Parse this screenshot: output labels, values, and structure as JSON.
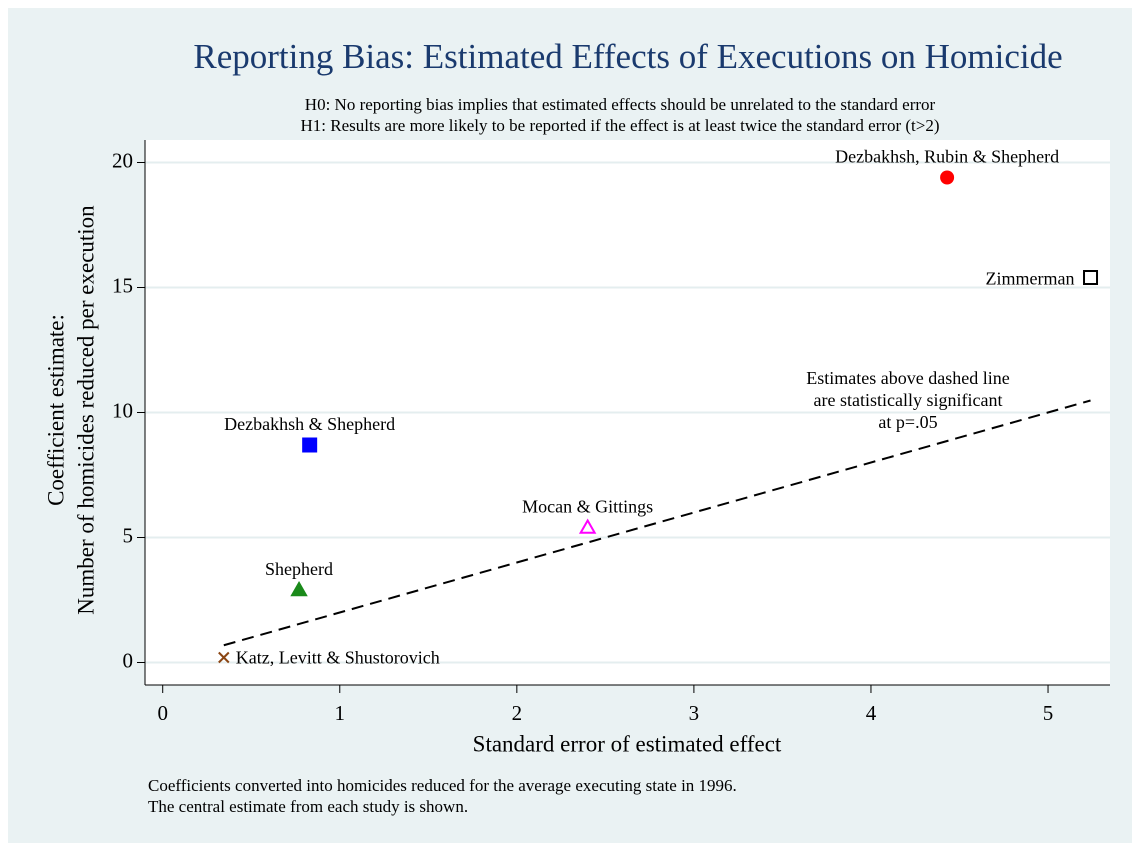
{
  "chart_data": {
    "type": "scatter",
    "title": "Reporting Bias: Estimated Effects of Executions on Homicide",
    "subtitle": [
      "H0: No reporting bias implies that estimated effects should be unrelated to the standard error",
      "H1: Results are more likely to be reported if the effect is at least twice the standard error (t>2)"
    ],
    "x_label": "Standard error of estimated effect",
    "y_label": [
      "Coefficient estimate:",
      "Number of homicides reduced per execution"
    ],
    "notes": [
      "Coefficients converted into homicides reduced for the average executing state in 1996.",
      "The central estimate from each study is shown."
    ],
    "annotation": [
      "Estimates above dashed line",
      "are statistically significant",
      "at p=.05"
    ],
    "xlim": [
      -0.1,
      5.35
    ],
    "ylim": [
      -0.9,
      20.9
    ],
    "xticks": [
      0,
      1,
      2,
      3,
      4,
      5
    ],
    "yticks": [
      0,
      5,
      10,
      15,
      20
    ],
    "grid": true,
    "series": [
      {
        "name": "Katz, Levitt & Shustorovich",
        "color": "#8b4513",
        "marker": "x",
        "x": [
          0.345
        ],
        "values": [
          0.2
        ]
      },
      {
        "name": "Shepherd",
        "color": "#1a8a1a",
        "marker": "triangle",
        "x": [
          0.77
        ],
        "values": [
          2.9
        ]
      },
      {
        "name": "Dezbakhsh & Shepherd",
        "color": "#0000ff",
        "marker": "square",
        "x": [
          0.83
        ],
        "values": [
          8.7
        ]
      },
      {
        "name": "Mocan & Gittings",
        "color": "#ff00ff",
        "marker": "triangle-hollow",
        "x": [
          2.4
        ],
        "values": [
          5.4
        ]
      },
      {
        "name": "Dezbakhsh, Rubin & Shepherd",
        "color": "#ff0000",
        "marker": "circle",
        "x": [
          4.43
        ],
        "values": [
          19.4
        ]
      },
      {
        "name": "Zimmerman",
        "color": "#000000",
        "marker": "square-hollow",
        "x": [
          5.24
        ],
        "values": [
          15.4
        ]
      }
    ],
    "line": {
      "color": "#000000",
      "style": "dashed",
      "x": [
        0.345,
        5.24
      ],
      "values": [
        0.69,
        10.48
      ]
    }
  }
}
